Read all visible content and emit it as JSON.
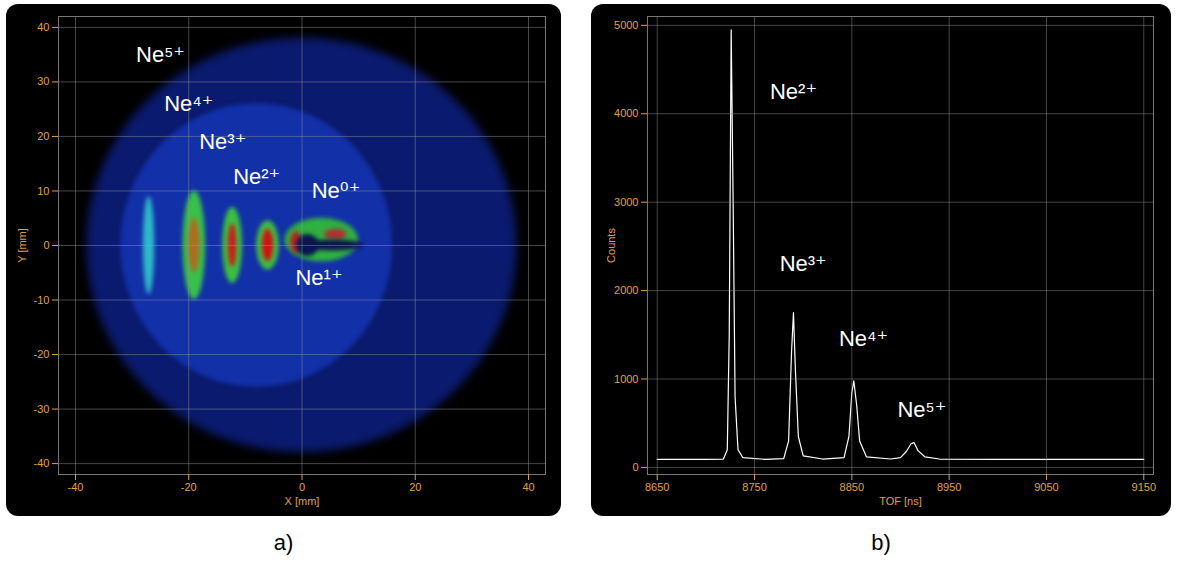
{
  "chart_data": [
    {
      "type": "image",
      "caption": "a)",
      "xlabel": "X [mm]",
      "ylabel": "Y [mm]",
      "xlim": [
        -43,
        43
      ],
      "ylim": [
        -42,
        42
      ],
      "xticks": [
        -40,
        -20,
        0,
        20,
        40
      ],
      "yticks": [
        -40,
        -30,
        -20,
        -10,
        0,
        10,
        20,
        30,
        40
      ],
      "grid": true,
      "spots": [
        {
          "x1": -38,
          "x2": 38,
          "y1": -38,
          "y2": 38,
          "color": "#0a1a6e"
        },
        {
          "x1": -32,
          "x2": 16,
          "y1": -26,
          "y2": 26,
          "color": "#1230a8"
        },
        {
          "x1": -28,
          "x2": -26,
          "y1": -9,
          "y2": 9,
          "color": "#2fb8c8"
        },
        {
          "x1": -21,
          "x2": -17,
          "y1": -10,
          "y2": 10,
          "color": "#39c04a"
        },
        {
          "x1": -20,
          "x2": -18,
          "y1": -5,
          "y2": 5,
          "color": "#b06a20"
        },
        {
          "x1": -14,
          "x2": -10.5,
          "y1": -7,
          "y2": 7,
          "color": "#3cc040"
        },
        {
          "x1": -13,
          "x2": -11.5,
          "y1": -4,
          "y2": 4,
          "color": "#cc1a1a"
        },
        {
          "x1": -8,
          "x2": -4,
          "y1": -4.5,
          "y2": 4.5,
          "color": "#40c040"
        },
        {
          "x1": -7,
          "x2": -5,
          "y1": -3,
          "y2": 3,
          "color": "#d01010"
        },
        {
          "x1": -3,
          "x2": 10,
          "y1": -3,
          "y2": 5,
          "color": "#30b040"
        },
        {
          "x1": -2,
          "x2": 0,
          "y1": -1.5,
          "y2": 2.5,
          "color": "#c02020"
        },
        {
          "x1": 4,
          "x2": 8,
          "y1": 1,
          "y2": 3,
          "color": "#b03030"
        },
        {
          "x1": 0,
          "x2": 11,
          "y1": -1,
          "y2": 1,
          "color": "#0a1450"
        },
        {
          "x1": -1,
          "x2": 3,
          "y1": -2,
          "y2": 2,
          "color": "#0a1450"
        }
      ],
      "annotations": [
        {
          "text": "Ne⁵⁺",
          "x": -25,
          "y": 35
        },
        {
          "text": "Ne⁴⁺",
          "x": -20,
          "y": 26
        },
        {
          "text": "Ne³⁺",
          "x": -14,
          "y": 19
        },
        {
          "text": "Ne²⁺",
          "x": -8,
          "y": 12.5
        },
        {
          "text": "Ne⁰⁺",
          "x": 6,
          "y": 10
        },
        {
          "text": "Ne¹⁺",
          "x": 3,
          "y": -6
        }
      ]
    },
    {
      "type": "line",
      "caption": "b)",
      "xlabel": "TOF [ns]",
      "ylabel": "Counts",
      "xlim": [
        8640,
        9160
      ],
      "ylim": [
        -80,
        5100
      ],
      "xticks": [
        8650,
        8750,
        8850,
        8950,
        9050,
        9150
      ],
      "yticks": [
        0,
        1000,
        2000,
        3000,
        4000,
        5000
      ],
      "grid": true,
      "color": "#ffffff",
      "x": [
        8650,
        8700,
        8718,
        8722,
        8724,
        8726,
        8728,
        8730,
        8733,
        8738,
        8760,
        8780,
        8785,
        8788,
        8790,
        8792,
        8795,
        8800,
        8820,
        8842,
        8847,
        8850,
        8852,
        8855,
        8858,
        8865,
        8890,
        8900,
        8906,
        8911,
        8914,
        8918,
        8925,
        8940,
        9000,
        9100,
        9150
      ],
      "values": [
        90,
        92,
        95,
        200,
        1500,
        4950,
        3000,
        800,
        200,
        110,
        92,
        100,
        300,
        1300,
        1750,
        1100,
        350,
        130,
        95,
        110,
        350,
        850,
        980,
        700,
        300,
        120,
        95,
        110,
        180,
        270,
        280,
        190,
        120,
        95,
        92,
        90,
        90
      ],
      "annotations": [
        {
          "text": "Ne²⁺",
          "x": 8790,
          "y": 4250
        },
        {
          "text": "Ne³⁺",
          "x": 8800,
          "y": 2300
        },
        {
          "text": "Ne⁴⁺",
          "x": 8862,
          "y": 1450
        },
        {
          "text": "Ne⁵⁺",
          "x": 8922,
          "y": 650
        }
      ]
    }
  ]
}
